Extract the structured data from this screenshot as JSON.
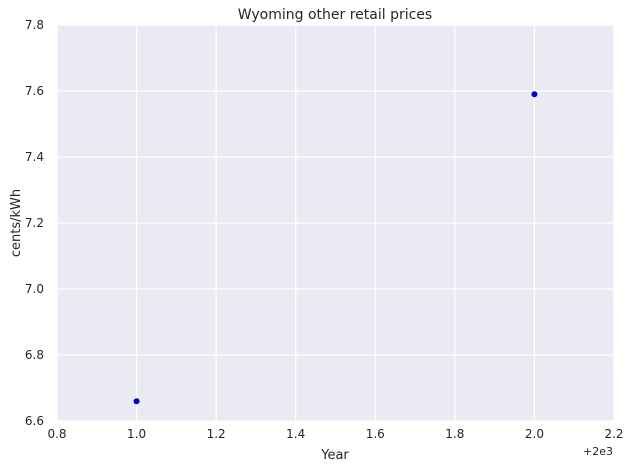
{
  "chart_data": {
    "type": "scatter",
    "title": "Wyoming   other retail prices",
    "xlabel": "Year",
    "ylabel": "cents/kWh",
    "x_offset_label": "+2e3",
    "xlim": [
      0.8,
      2.2
    ],
    "ylim": [
      6.6,
      7.8
    ],
    "xticks": [
      "0.8",
      "1.0",
      "1.2",
      "1.4",
      "1.6",
      "1.8",
      "2.0",
      "2.2"
    ],
    "yticks": [
      "6.6",
      "6.8",
      "7.0",
      "7.2",
      "7.4",
      "7.6",
      "7.8"
    ],
    "grid": true,
    "series": [
      {
        "color": "#0000cc",
        "points": [
          {
            "x": 1.0,
            "y": 6.66
          },
          {
            "x": 2.0,
            "y": 7.59
          }
        ]
      }
    ],
    "colors": {
      "background": "#eaeaf2",
      "grid": "#ffffff",
      "text": "#262626"
    }
  }
}
